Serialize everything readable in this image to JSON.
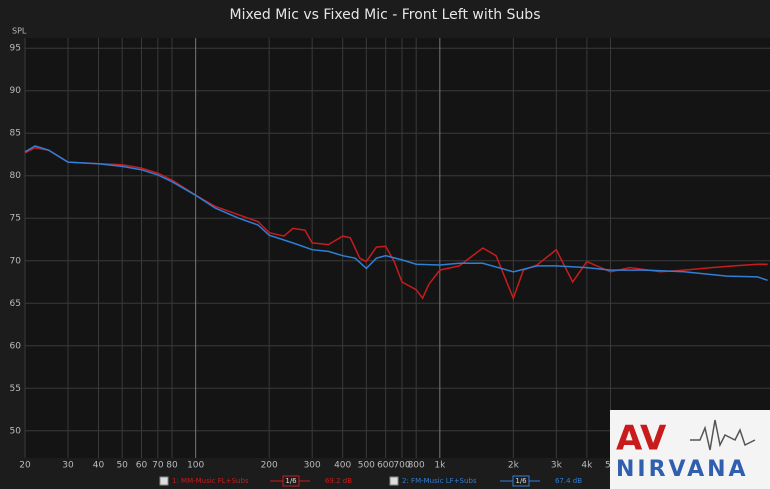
{
  "chart_data": {
    "type": "line",
    "title": "Mixed Mic vs Fixed Mic - Front Left with Subs",
    "y_label": "SPL",
    "xscale": "log",
    "grid": true,
    "xlim": [
      20,
      22500
    ],
    "ylim": [
      46.8,
      96.2
    ],
    "xticks": [
      20,
      30,
      40,
      50,
      60,
      70,
      80,
      100,
      200,
      300,
      400,
      500,
      600,
      700,
      800,
      {
        "value": 1000,
        "label": "1k"
      },
      {
        "value": 2000,
        "label": "2k"
      },
      {
        "value": 3000,
        "label": "3k"
      },
      {
        "value": 4000,
        "label": "4k"
      },
      {
        "value": 5000,
        "label": "5k"
      }
    ],
    "yticks": [
      50,
      55,
      60,
      65,
      70,
      75,
      80,
      85,
      90,
      95
    ],
    "series": [
      {
        "name": "1: MM-Music FL+Subs",
        "color": "#c81c1c",
        "smoothing": "1/6",
        "level": "69.2 dB",
        "x": [
          20,
          22,
          25,
          30,
          40,
          50,
          60,
          70,
          80,
          100,
          120,
          150,
          180,
          200,
          230,
          250,
          280,
          300,
          350,
          400,
          430,
          470,
          500,
          550,
          600,
          650,
          700,
          800,
          850,
          900,
          1000,
          1200,
          1500,
          1700,
          2000,
          2200,
          2500,
          3000,
          3500,
          4000,
          5000,
          6000,
          8000,
          10000,
          13000,
          16000,
          20000,
          22000
        ],
        "values": [
          82.7,
          83.3,
          83.0,
          81.6,
          81.4,
          81.3,
          80.9,
          80.3,
          79.5,
          77.7,
          76.4,
          75.4,
          74.6,
          73.3,
          72.9,
          73.8,
          73.6,
          72.1,
          71.9,
          72.9,
          72.7,
          70.3,
          69.9,
          71.6,
          71.7,
          69.9,
          67.5,
          66.6,
          65.6,
          67.2,
          68.9,
          69.4,
          71.5,
          70.6,
          65.6,
          68.9,
          69.5,
          71.3,
          67.5,
          69.9,
          68.7,
          69.2,
          68.7,
          68.9,
          69.2,
          69.4,
          69.6,
          69.6
        ]
      },
      {
        "name": "2: FM-Music LF+Subs",
        "color": "#2f7fd6",
        "smoothing": "1/6",
        "level": "67.4 dB",
        "x": [
          20,
          22,
          25,
          30,
          40,
          50,
          60,
          70,
          80,
          100,
          120,
          150,
          180,
          200,
          250,
          300,
          350,
          400,
          450,
          500,
          550,
          600,
          700,
          800,
          1000,
          1200,
          1500,
          2000,
          2500,
          3000,
          4000,
          5000,
          7000,
          10000,
          15000,
          20000,
          22000
        ],
        "values": [
          82.8,
          83.5,
          83.0,
          81.6,
          81.4,
          81.1,
          80.7,
          80.1,
          79.3,
          77.7,
          76.2,
          75.0,
          74.2,
          73.0,
          72.1,
          71.3,
          71.1,
          70.6,
          70.3,
          69.1,
          70.3,
          70.6,
          70.1,
          69.6,
          69.5,
          69.7,
          69.7,
          68.7,
          69.4,
          69.4,
          69.2,
          68.9,
          68.9,
          68.7,
          68.2,
          68.1,
          67.7
        ]
      }
    ]
  },
  "watermark": {
    "top": "AV",
    "bottom": "NIRVANA"
  }
}
